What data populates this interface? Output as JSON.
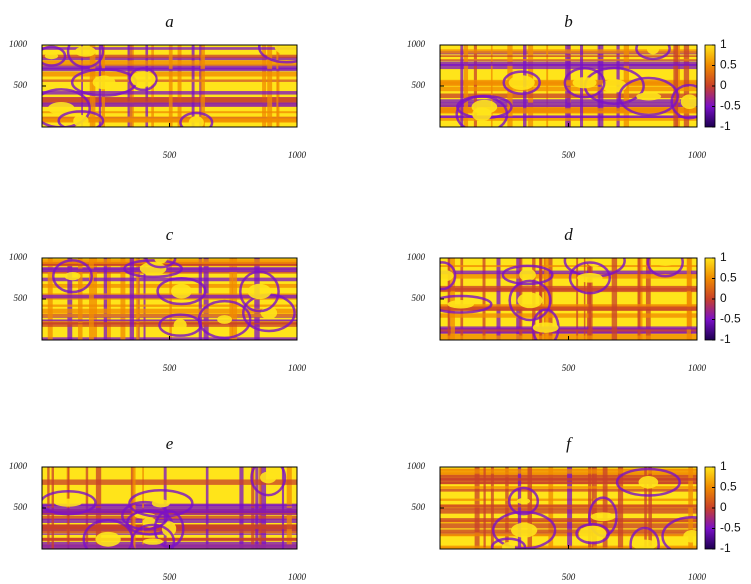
{
  "chart_data": [
    {
      "type": "heatmap",
      "title": "a",
      "xlim": [
        0,
        1000
      ],
      "ylim": [
        0,
        1000
      ],
      "xticks": [
        500,
        1000
      ],
      "yticks": [
        500,
        1000
      ],
      "colormap": [
        "#1c0050",
        "#7a10c8",
        "#c8402a",
        "#f08a00",
        "#ffe41a"
      ]
    },
    {
      "type": "heatmap",
      "title": "b",
      "xlim": [
        0,
        1000
      ],
      "ylim": [
        0,
        1000
      ],
      "xticks": [
        500,
        1000
      ],
      "yticks": [
        500,
        1000
      ],
      "colormap": [
        "#1c0050",
        "#7a10c8",
        "#c8402a",
        "#f08a00",
        "#ffe41a"
      ],
      "colorbar": {
        "zlim": [
          -1,
          1
        ],
        "ticks": [
          1,
          0.5,
          0,
          -0.5,
          -1
        ]
      }
    },
    {
      "type": "heatmap",
      "title": "c",
      "xlim": [
        0,
        1000
      ],
      "ylim": [
        0,
        1000
      ],
      "xticks": [
        500,
        1000
      ],
      "yticks": [
        500,
        1000
      ],
      "colormap": [
        "#1c0050",
        "#7a10c8",
        "#c8402a",
        "#f08a00",
        "#ffe41a"
      ]
    },
    {
      "type": "heatmap",
      "title": "d",
      "xlim": [
        0,
        1000
      ],
      "ylim": [
        0,
        1000
      ],
      "xticks": [
        500,
        1000
      ],
      "yticks": [
        500,
        1000
      ],
      "colormap": [
        "#1c0050",
        "#7a10c8",
        "#c8402a",
        "#f08a00",
        "#ffe41a"
      ],
      "colorbar": {
        "zlim": [
          -1,
          1
        ],
        "ticks": [
          1,
          0.5,
          0,
          -0.5,
          -1
        ]
      }
    },
    {
      "type": "heatmap",
      "title": "e",
      "xlim": [
        0,
        1000
      ],
      "ylim": [
        0,
        1000
      ],
      "xticks": [
        500,
        1000
      ],
      "yticks": [
        500,
        1000
      ],
      "colormap": [
        "#1c0050",
        "#7a10c8",
        "#c8402a",
        "#f08a00",
        "#ffe41a"
      ]
    },
    {
      "type": "heatmap",
      "title": "f",
      "xlim": [
        0,
        1000
      ],
      "ylim": [
        0,
        1000
      ],
      "xticks": [
        500,
        1000
      ],
      "yticks": [
        500,
        1000
      ],
      "colormap": [
        "#1c0050",
        "#7a10c8",
        "#c8402a",
        "#f08a00",
        "#ffe41a"
      ],
      "colorbar": {
        "zlim": [
          -1,
          1
        ],
        "ticks": [
          1,
          0.5,
          0,
          -0.5,
          -1
        ]
      }
    }
  ]
}
